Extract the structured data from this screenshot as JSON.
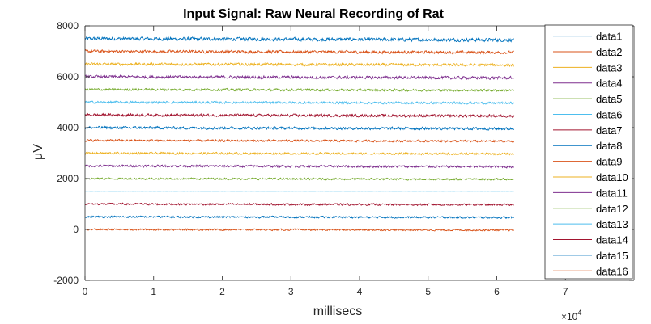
{
  "chart_data": {
    "type": "line",
    "title": "Input Signal: Raw Neural Recording of Rat",
    "xlabel": "millisecs",
    "ylabel": "μV",
    "x_exponent_label": "×10",
    "x_exponent_power": "4",
    "xlim": [
      0,
      80000
    ],
    "ylim": [
      -2000,
      8000
    ],
    "xticks": [
      0,
      10000,
      20000,
      30000,
      40000,
      50000,
      60000,
      70000
    ],
    "xtick_labels": [
      "0",
      "1",
      "2",
      "3",
      "4",
      "5",
      "6",
      "7"
    ],
    "yticks": [
      -2000,
      0,
      2000,
      4000,
      6000,
      8000
    ],
    "ytick_labels": [
      "-2000",
      "0",
      "2000",
      "4000",
      "6000",
      "8000"
    ],
    "grid": false,
    "legend_position": "right",
    "data_x_range": [
      0,
      62500
    ],
    "series": [
      {
        "name": "data1",
        "offset": 7500,
        "color": "#0072BD",
        "noise": 90
      },
      {
        "name": "data2",
        "offset": 7000,
        "color": "#D95319",
        "noise": 75
      },
      {
        "name": "data3",
        "offset": 6500,
        "color": "#EDB120",
        "noise": 70
      },
      {
        "name": "data4",
        "offset": 6000,
        "color": "#7E2F8E",
        "noise": 75
      },
      {
        "name": "data5",
        "offset": 5500,
        "color": "#77AC30",
        "noise": 60
      },
      {
        "name": "data6",
        "offset": 5000,
        "color": "#4DBEEE",
        "noise": 60
      },
      {
        "name": "data7",
        "offset": 4500,
        "color": "#A2142F",
        "noise": 70
      },
      {
        "name": "data8",
        "offset": 4000,
        "color": "#0072BD",
        "noise": 70
      },
      {
        "name": "data9",
        "offset": 3500,
        "color": "#D95319",
        "noise": 55
      },
      {
        "name": "data10",
        "offset": 3000,
        "color": "#EDB120",
        "noise": 55
      },
      {
        "name": "data11",
        "offset": 2500,
        "color": "#7E2F8E",
        "noise": 60
      },
      {
        "name": "data12",
        "offset": 2000,
        "color": "#77AC30",
        "noise": 50
      },
      {
        "name": "data13",
        "offset": 1500,
        "color": "#4DBEEE",
        "noise": 2
      },
      {
        "name": "data14",
        "offset": 1000,
        "color": "#A2142F",
        "noise": 50
      },
      {
        "name": "data15",
        "offset": 500,
        "color": "#0072BD",
        "noise": 50
      },
      {
        "name": "data16",
        "offset": 0,
        "color": "#D95319",
        "noise": 45
      }
    ]
  }
}
